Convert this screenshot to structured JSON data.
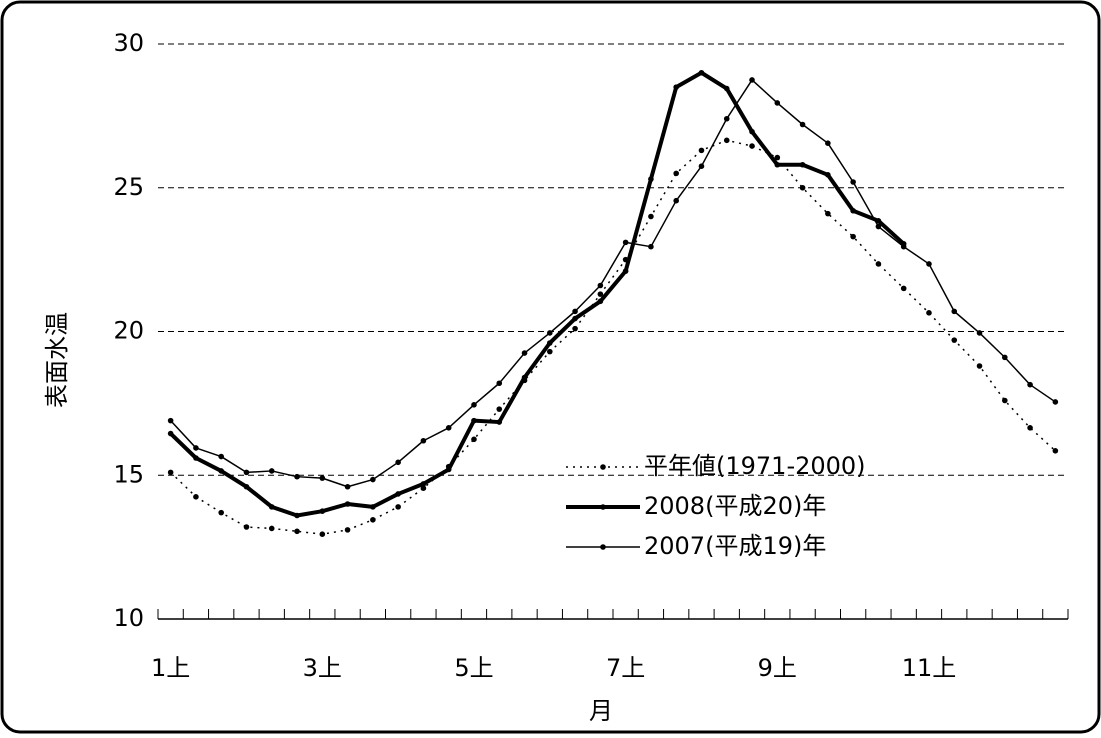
{
  "chart_data": {
    "type": "line",
    "categories": [
      "1上",
      null,
      null,
      null,
      null,
      null,
      "3上",
      null,
      null,
      null,
      null,
      null,
      "5上",
      null,
      null,
      null,
      null,
      null,
      "7上",
      null,
      null,
      null,
      null,
      null,
      "9上",
      null,
      null,
      null,
      null,
      null,
      "11上",
      null,
      null,
      null,
      null,
      null
    ],
    "x_label": "月",
    "y_label": "表面水温",
    "ylim": [
      10,
      30
    ],
    "yticks": [
      10,
      15,
      20,
      25,
      30
    ],
    "grid": true,
    "series": [
      {
        "name": "平年値(1971-2000)",
        "color": "#000000",
        "style": "dotted",
        "width": 1.5,
        "values": [
          15.1,
          14.25,
          13.7,
          13.2,
          13.15,
          13.05,
          12.95,
          13.1,
          13.45,
          13.9,
          14.55,
          15.3,
          16.25,
          17.3,
          18.3,
          19.3,
          20.1,
          21.3,
          22.5,
          24.0,
          25.5,
          26.3,
          26.65,
          26.45,
          26.05,
          25.0,
          24.1,
          23.3,
          22.35,
          21.5,
          20.65,
          19.7,
          18.8,
          17.6,
          16.65,
          15.85
        ]
      },
      {
        "name": "2008(平成20)年",
        "color": "#000000",
        "style": "solid",
        "width": 4,
        "values": [
          16.45,
          15.6,
          15.15,
          14.6,
          13.9,
          13.6,
          13.75,
          14.0,
          13.9,
          14.35,
          14.7,
          15.2,
          16.9,
          16.85,
          18.4,
          19.6,
          20.45,
          21.05,
          22.1,
          25.3,
          28.5,
          29.0,
          28.45,
          26.95,
          25.8,
          25.8,
          25.45,
          24.2,
          23.85,
          23.05,
          null,
          null,
          null,
          null,
          null,
          null
        ]
      },
      {
        "name": "2007(平成19)年",
        "color": "#000000",
        "style": "solid",
        "width": 1.5,
        "values": [
          16.9,
          15.95,
          15.65,
          15.1,
          15.15,
          14.95,
          14.9,
          14.6,
          14.85,
          15.45,
          16.2,
          16.65,
          17.45,
          18.2,
          19.25,
          19.95,
          20.7,
          21.6,
          23.1,
          22.95,
          24.55,
          25.75,
          27.4,
          28.75,
          27.95,
          27.2,
          26.55,
          25.2,
          23.65,
          22.95,
          22.35,
          20.7,
          19.95,
          19.1,
          18.15,
          17.55
        ]
      }
    ]
  }
}
